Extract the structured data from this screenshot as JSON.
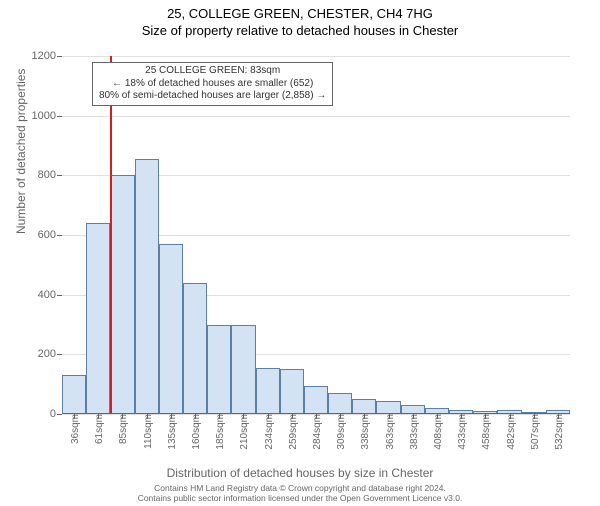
{
  "titles": {
    "line1": "25, COLLEGE GREEN, CHESTER, CH4 7HG",
    "line2": "Size of property relative to detached houses in Chester"
  },
  "yaxis": {
    "title": "Number of detached properties",
    "min": 0,
    "max": 1200,
    "step": 200,
    "ticks": [
      0,
      200,
      400,
      600,
      800,
      1000,
      1200
    ],
    "grid_color": "#e0e0e0",
    "text_color": "#666666"
  },
  "xaxis": {
    "title": "Distribution of detached houses by size in Chester",
    "labels": [
      "36sqm",
      "61sqm",
      "85sqm",
      "110sqm",
      "135sqm",
      "160sqm",
      "185sqm",
      "210sqm",
      "234sqm",
      "259sqm",
      "284sqm",
      "309sqm",
      "338sqm",
      "363sqm",
      "383sqm",
      "408sqm",
      "433sqm",
      "458sqm",
      "482sqm",
      "507sqm",
      "532sqm"
    ],
    "text_color": "#666666"
  },
  "chart": {
    "type": "histogram",
    "bar_fill": "#d4e3f4",
    "bar_border": "#5a7fa8",
    "background": "#ffffff",
    "values": [
      130,
      640,
      800,
      855,
      570,
      440,
      300,
      300,
      155,
      150,
      95,
      70,
      50,
      45,
      30,
      20,
      15,
      10,
      12,
      8,
      12
    ],
    "reference_line": {
      "color": "#d02020",
      "bin_index": 2,
      "position_fraction_in_bin": 0.0
    }
  },
  "infobox": {
    "line1": "25 COLLEGE GREEN: 83sqm",
    "line2": "← 18% of detached houses are smaller (652)",
    "line3": "80% of semi-detached houses are larger (2,858) →",
    "border_color": "#666666",
    "background": "#ffffff"
  },
  "footer": {
    "line1": "Contains HM Land Registry data © Crown copyright and database right 2024.",
    "line2": "Contains public sector information licensed under the Open Government Licence v3.0."
  }
}
